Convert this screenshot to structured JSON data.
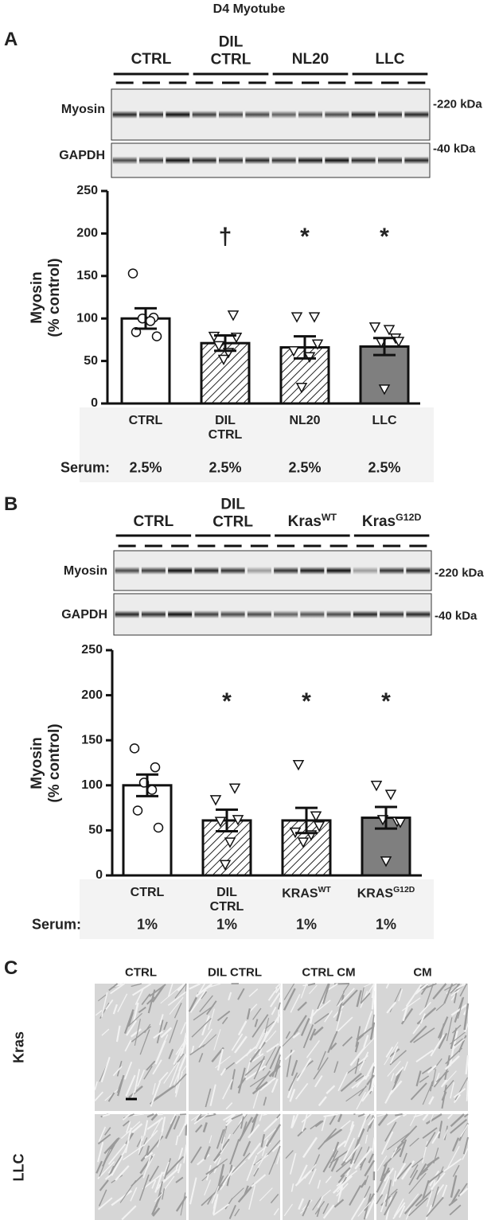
{
  "title": "D4 Myotube",
  "panels": [
    {
      "letter": "A",
      "blot": {
        "groups": [
          {
            "label": "CTRL"
          },
          {
            "label": "DIL\nCTRL"
          },
          {
            "label": "NL20"
          },
          {
            "label": "LLC"
          }
        ],
        "rows": [
          {
            "label": "Myosin",
            "marker": "-220 kDa"
          },
          {
            "label": "GAPDH",
            "marker": "-40 kDa"
          }
        ]
      }
    },
    {
      "letter": "B",
      "blot": {
        "groups": [
          {
            "label": "CTRL"
          },
          {
            "label": "DIL\nCTRL"
          },
          {
            "label": "Kras",
            "sup": "WT"
          },
          {
            "label": "Kras",
            "sup": "G12D"
          }
        ],
        "rows": [
          {
            "label": "Myosin",
            "marker": "-220 kDa"
          },
          {
            "label": "GAPDH",
            "marker": "-40 kDa"
          }
        ]
      }
    }
  ],
  "chart_data": [
    {
      "type": "bar",
      "y_label": "Myosin\n(% control)",
      "categories": [
        "CTRL",
        "DIL\nCTRL",
        "NL20",
        "LLC"
      ],
      "category_superscripts": [
        null,
        null,
        null,
        null
      ],
      "values": [
        100,
        71,
        66,
        67
      ],
      "errors": [
        12,
        9,
        13,
        10
      ],
      "points": [
        [
          153,
          101,
          100,
          97,
          84,
          79
        ],
        [
          104,
          79,
          78,
          68,
          60,
          52
        ],
        [
          102,
          102,
          70,
          62,
          55,
          19
        ],
        [
          90,
          87,
          77,
          72,
          73,
          17
        ]
      ],
      "fills": [
        "#ffffff",
        "hatch",
        "hatch",
        "#7f7f7f"
      ],
      "markers": [
        "circle",
        "triangle",
        "triangle",
        "triangle"
      ],
      "annotations": [
        null,
        "†",
        "*",
        "*"
      ],
      "serum_label": "Serum:",
      "serum": [
        "2.5%",
        "2.5%",
        "2.5%",
        "2.5%"
      ],
      "ylim": [
        0,
        250
      ],
      "yticks": [
        0,
        50,
        100,
        150,
        200,
        250
      ]
    },
    {
      "type": "bar",
      "y_label": "Myosin\n(% control)",
      "categories": [
        "CTRL",
        "DIL\nCTRL",
        "KRAS",
        "KRAS"
      ],
      "category_superscripts": [
        null,
        null,
        "WT",
        "G12D"
      ],
      "values": [
        100,
        61,
        61,
        64
      ],
      "errors": [
        12,
        12,
        14,
        12
      ],
      "points": [
        [
          141,
          120,
          103,
          95,
          72,
          53
        ],
        [
          97,
          84,
          62,
          60,
          37,
          12
        ],
        [
          123,
          66,
          55,
          48,
          45,
          37
        ],
        [
          100,
          90,
          60,
          62,
          59,
          16
        ]
      ],
      "fills": [
        "#ffffff",
        "hatch",
        "hatch",
        "#7f7f7f"
      ],
      "markers": [
        "circle",
        "triangle",
        "triangle",
        "triangle"
      ],
      "annotations": [
        null,
        "*",
        "*",
        "*"
      ],
      "serum_label": "Serum:",
      "serum": [
        "1%",
        "1%",
        "1%",
        "1%"
      ],
      "ylim": [
        0,
        250
      ],
      "yticks": [
        0,
        50,
        100,
        150,
        200,
        250
      ]
    }
  ],
  "panel_c": {
    "letter": "C",
    "columns": [
      "CTRL",
      "DIL CTRL",
      "CTRL CM",
      "CM"
    ],
    "rows": [
      "Kras",
      "LLC"
    ]
  }
}
